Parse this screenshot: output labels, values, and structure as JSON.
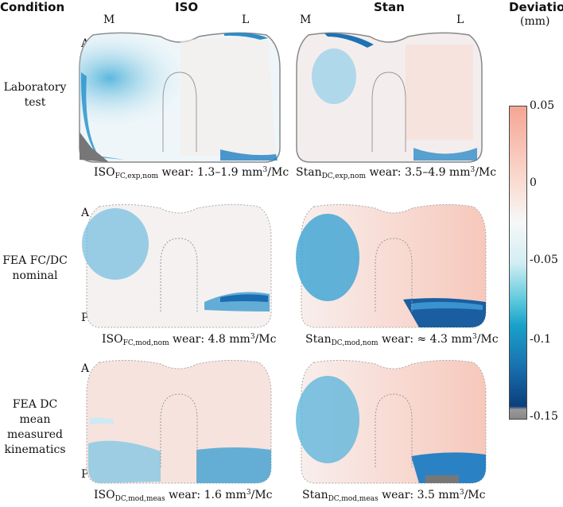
{
  "headers": {
    "condition": "Condition",
    "iso": "ISO",
    "stan": "Stan",
    "deviation": "Deviation",
    "unit": "(mm)"
  },
  "markers": {
    "M": "M",
    "L": "L",
    "A": "A",
    "P": "P"
  },
  "rows": [
    {
      "label_line1": "Laboratory",
      "label_line2": "test"
    },
    {
      "label_line1": "FEA FC/DC",
      "label_line2": "nominal"
    },
    {
      "label_line1": "FEA DC",
      "label_line2": "mean",
      "label_line3": "measured",
      "label_line4": "kinematics"
    }
  ],
  "captions": {
    "iso_lab": {
      "prefix": "ISO",
      "sub": "FC,exp,nom",
      "text": " wear: 1.3–1.9 mm",
      "sup": "3",
      "suffix": "/Mc"
    },
    "stan_lab": {
      "prefix": "Stan",
      "sub": "DC,exp,nom",
      "text": " wear: 3.5–4.9 mm",
      "sup": "3",
      "suffix": "/Mc"
    },
    "iso_nom": {
      "prefix": "ISO",
      "sub": "FC,mod,nom",
      "text": " wear: 4.8 mm",
      "sup": "3",
      "suffix": "/Mc"
    },
    "stan_nom": {
      "prefix": "Stan",
      "sub": "DC,mod,nom",
      "text": " wear: ≈ 4.3 mm",
      "sup": "3",
      "suffix": "/Mc"
    },
    "iso_meas": {
      "prefix": "ISO",
      "sub": "DC,mod,meas",
      "text": " wear: 1.6 mm",
      "sup": "3",
      "suffix": "/Mc"
    },
    "stan_meas": {
      "prefix": "Stan",
      "sub": "DC,mod,meas",
      "text": " wear:  3.5 mm",
      "sup": "3",
      "suffix": "/Mc"
    }
  },
  "colorbar": {
    "ticks": [
      "0.05",
      "0",
      "-0.05",
      "-0.1",
      "-0.15"
    ],
    "colors": {
      "positive": "#f5a593",
      "zero": "#f7f7f7",
      "negative_mid": "#19a2c9",
      "negative_max": "#0c3e7c"
    }
  }
}
